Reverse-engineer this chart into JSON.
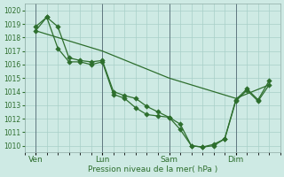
{
  "bg_color": "#ceeae4",
  "grid_color": "#a8cfc8",
  "line_color": "#2d6e2d",
  "marker_color": "#2d6e2d",
  "xlabel": "Pression niveau de la mer( hPa )",
  "ylim": [
    1009.5,
    1020.5
  ],
  "yticks": [
    1010,
    1011,
    1012,
    1013,
    1014,
    1015,
    1016,
    1017,
    1018,
    1019,
    1020
  ],
  "xtick_labels": [
    "Ven",
    "Lun",
    "Sam",
    "Dim"
  ],
  "xtick_positions": [
    1,
    7,
    13,
    19
  ],
  "total_points": 24,
  "series1_x": [
    1,
    2,
    3,
    4,
    5,
    6,
    7,
    8,
    9,
    10,
    11,
    12,
    13,
    14,
    15,
    16,
    17,
    18,
    19,
    20,
    21,
    22
  ],
  "series1_y": [
    1018.8,
    1019.5,
    1018.8,
    1016.5,
    1016.3,
    1016.2,
    1016.3,
    1014.0,
    1013.7,
    1013.5,
    1012.9,
    1012.5,
    1012.1,
    1011.6,
    1010.0,
    1009.9,
    1010.0,
    1010.5,
    1013.3,
    1014.1,
    1013.3,
    1014.5
  ],
  "series2_x": [
    1,
    2,
    3,
    4,
    5,
    6,
    7,
    8,
    9,
    10,
    11,
    12,
    13,
    14,
    15,
    16,
    17,
    18,
    19,
    20,
    21,
    22
  ],
  "series2_y": [
    1018.5,
    1019.5,
    1017.2,
    1016.2,
    1016.2,
    1016.0,
    1016.2,
    1013.8,
    1013.5,
    1012.8,
    1012.3,
    1012.2,
    1012.1,
    1011.2,
    1010.0,
    1009.9,
    1010.1,
    1010.5,
    1013.4,
    1014.2,
    1013.4,
    1014.8
  ],
  "series3_x": [
    1,
    7,
    13,
    19,
    22
  ],
  "series3_y": [
    1018.5,
    1017.0,
    1015.0,
    1013.5,
    1014.5
  ],
  "vline_color": "#607880",
  "vline_positions": [
    1,
    7,
    13,
    19
  ]
}
